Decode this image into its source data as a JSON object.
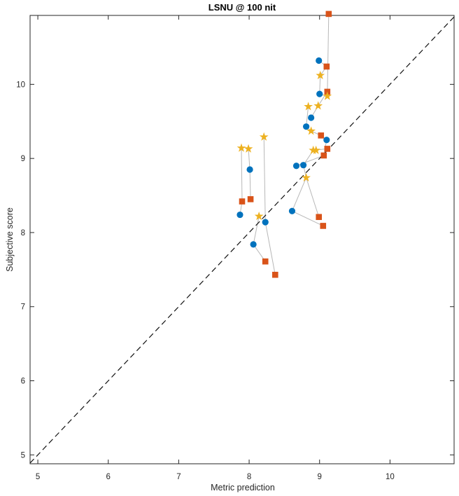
{
  "chart_data": {
    "type": "scatter",
    "title": "LSNU @ 100 nit",
    "xlabel": "Metric prediction",
    "ylabel": "Subjective score",
    "xlim": [
      4.89,
      10.91
    ],
    "ylim": [
      4.88,
      10.93
    ],
    "xticks": [
      5,
      6,
      7,
      8,
      9,
      10
    ],
    "yticks": [
      5,
      6,
      7,
      8,
      9,
      10
    ],
    "grid": false,
    "legend": "none",
    "axis_color": "#262626",
    "identity_line": {
      "style": "dashed",
      "color": "#111111",
      "from": 4.89,
      "to": 10.91
    },
    "connector_color": "#b8b8b8",
    "series": [
      {
        "name": "circle-series",
        "marker": "circle",
        "color": "#0072BD",
        "points": [
          [
            7.87,
            8.24
          ],
          [
            8.01,
            8.85
          ],
          [
            8.06,
            7.84
          ],
          [
            8.23,
            8.14
          ],
          [
            8.61,
            8.29
          ],
          [
            8.67,
            8.9
          ],
          [
            8.77,
            8.91
          ],
          [
            8.81,
            9.43
          ],
          [
            8.88,
            9.55
          ],
          [
            9.0,
            9.87
          ],
          [
            8.99,
            10.32
          ],
          [
            9.1,
            9.25
          ]
        ]
      },
      {
        "name": "square-series",
        "marker": "square",
        "color": "#D95319",
        "points": [
          [
            7.9,
            8.42
          ],
          [
            8.02,
            8.45
          ],
          [
            8.23,
            7.61
          ],
          [
            8.37,
            7.43
          ],
          [
            8.99,
            8.21
          ],
          [
            9.05,
            8.09
          ],
          [
            9.06,
            9.04
          ],
          [
            9.11,
            9.13
          ],
          [
            9.02,
            9.31
          ],
          [
            9.11,
            9.9
          ],
          [
            9.1,
            10.24
          ],
          [
            9.13,
            10.95
          ]
        ]
      },
      {
        "name": "star-series",
        "marker": "star",
        "color": "#EDB120",
        "points": [
          [
            7.89,
            9.14
          ],
          [
            7.99,
            9.13
          ],
          [
            8.21,
            9.29
          ],
          [
            8.14,
            8.22
          ],
          [
            8.81,
            8.74
          ],
          [
            8.91,
            9.11
          ],
          [
            8.95,
            9.11
          ],
          [
            8.88,
            9.37
          ],
          [
            8.84,
            9.7
          ],
          [
            8.98,
            9.71
          ],
          [
            9.01,
            10.12
          ],
          [
            9.11,
            9.84
          ]
        ]
      }
    ],
    "connectors": [
      [
        [
          7.89,
          9.14
        ],
        [
          7.9,
          8.42
        ]
      ],
      [
        [
          7.9,
          8.42
        ],
        [
          7.87,
          8.24
        ]
      ],
      [
        [
          7.99,
          9.13
        ],
        [
          8.01,
          8.85
        ]
      ],
      [
        [
          8.01,
          8.85
        ],
        [
          8.02,
          8.45
        ]
      ],
      [
        [
          8.21,
          9.29
        ],
        [
          8.23,
          8.14
        ]
      ],
      [
        [
          8.23,
          8.14
        ],
        [
          8.37,
          7.43
        ]
      ],
      [
        [
          8.14,
          8.22
        ],
        [
          8.06,
          7.84
        ]
      ],
      [
        [
          8.06,
          7.84
        ],
        [
          8.23,
          7.61
        ]
      ],
      [
        [
          8.81,
          8.74
        ],
        [
          8.61,
          8.29
        ]
      ],
      [
        [
          8.81,
          8.74
        ],
        [
          8.99,
          8.21
        ]
      ],
      [
        [
          8.61,
          8.29
        ],
        [
          9.05,
          8.09
        ]
      ],
      [
        [
          8.99,
          10.32
        ],
        [
          9.1,
          10.24
        ]
      ],
      [
        [
          9.1,
          10.24
        ],
        [
          9.01,
          10.12
        ]
      ],
      [
        [
          9.01,
          10.12
        ],
        [
          9.0,
          9.87
        ]
      ],
      [
        [
          9.13,
          10.95
        ],
        [
          9.11,
          9.84
        ]
      ],
      [
        [
          9.11,
          9.84
        ],
        [
          9.0,
          9.87
        ]
      ],
      [
        [
          9.11,
          9.9
        ],
        [
          8.98,
          9.71
        ]
      ],
      [
        [
          8.98,
          9.71
        ],
        [
          8.88,
          9.55
        ]
      ],
      [
        [
          8.84,
          9.7
        ],
        [
          8.81,
          9.43
        ]
      ],
      [
        [
          8.81,
          9.43
        ],
        [
          8.88,
          9.37
        ]
      ],
      [
        [
          8.88,
          9.37
        ],
        [
          9.02,
          9.31
        ]
      ],
      [
        [
          9.02,
          9.31
        ],
        [
          9.1,
          9.25
        ]
      ],
      [
        [
          9.11,
          9.13
        ],
        [
          8.91,
          9.11
        ]
      ],
      [
        [
          8.91,
          9.11
        ],
        [
          8.77,
          8.91
        ]
      ],
      [
        [
          9.06,
          9.04
        ],
        [
          9.1,
          9.25
        ]
      ],
      [
        [
          9.06,
          9.04
        ],
        [
          8.67,
          8.9
        ]
      ],
      [
        [
          8.77,
          8.91
        ],
        [
          8.81,
          8.74
        ]
      ]
    ]
  }
}
